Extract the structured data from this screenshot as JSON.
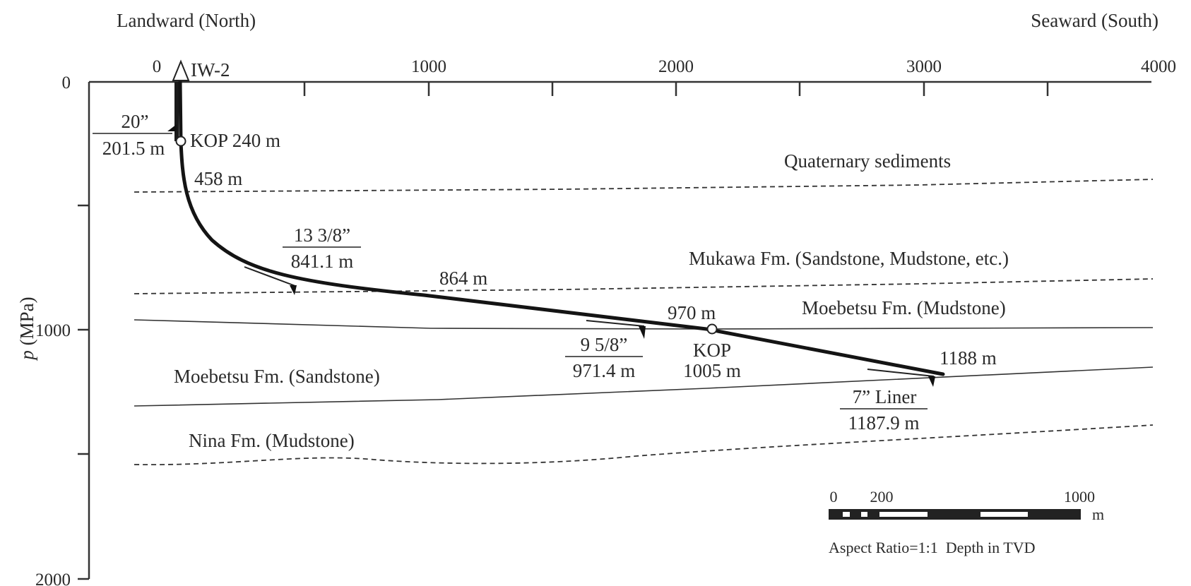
{
  "header": {
    "landward": "Landward (North)",
    "seaward": "Seaward (South)"
  },
  "axes": {
    "y_label_italic": "p",
    "y_label_rest": " (MPa)",
    "x_ticks": [
      "0",
      "1000",
      "2000",
      "3000",
      "4000"
    ],
    "y_ticks": [
      "0",
      "1000",
      "2000"
    ]
  },
  "well": {
    "name": "IW-2",
    "kop_upper": "KOP 240 m",
    "depth_458": "458 m",
    "depth_864": "864 m",
    "depth_970": "970 m",
    "kop_lower": "KOP",
    "kop_lower_depth": "1005 m",
    "depth_1188": "1188 m"
  },
  "casings": [
    {
      "size": "20”",
      "depth": "201.5 m"
    },
    {
      "size": "13 3/8”",
      "depth": "841.1 m"
    },
    {
      "size": "9 5/8”",
      "depth": "971.4 m"
    },
    {
      "size": "7” Liner",
      "depth": "1187.9 m"
    }
  ],
  "formations": [
    "Quaternary sediments",
    "Mukawa Fm. (Sandstone, Mudstone, etc.)",
    "Moebetsu Fm. (Mudstone)",
    "Moebetsu Fm. (Sandstone)",
    "Nina Fm. (Mudstone)"
  ],
  "scale_bar": {
    "label_0": "0",
    "label_200": "200",
    "label_1000": "1000",
    "unit": "m",
    "note": "Aspect Ratio=1:1  Depth in TVD"
  }
}
